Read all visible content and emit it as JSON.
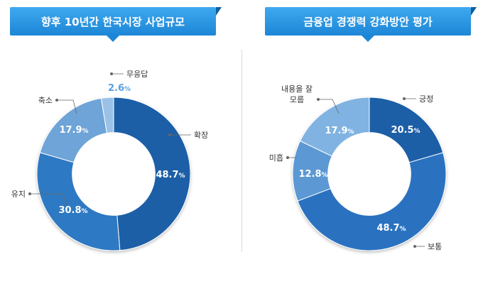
{
  "banners": {
    "left": "향후 10년간 한국시장 사업규모",
    "right": "금융업 경쟁력 강화방안 평가"
  },
  "chart_data": [
    {
      "type": "pie",
      "title": "향후 10년간 한국시장 사업규모",
      "categories": [
        "확장",
        "유지",
        "축소",
        "무응답"
      ],
      "values": [
        48.7,
        30.8,
        17.9,
        2.6
      ],
      "colors": [
        "#1a5ea7",
        "#2f79c3",
        "#6ea4d7",
        "#9bc2e6"
      ],
      "value_labels": [
        "48.7",
        "30.8",
        "17.9",
        "2.6"
      ],
      "value_label_colors": [
        "#ffffff",
        "#ffffff",
        "#ffffff",
        "#5b9fdd"
      ],
      "label_lines": [
        [
          "확장"
        ],
        [
          "유지"
        ],
        [
          "축소"
        ],
        [
          "무응답"
        ]
      ],
      "start_angle_deg": 0,
      "inner_radius_ratio": 0.54
    },
    {
      "type": "pie",
      "title": "금융업 경쟁력 강화방안 평가",
      "categories": [
        "긍정",
        "보통",
        "미흡",
        "내용을 잘 모름"
      ],
      "values": [
        20.5,
        48.7,
        12.8,
        17.9
      ],
      "colors": [
        "#1a5ea7",
        "#2a72c0",
        "#5c98d4",
        "#80b3e1"
      ],
      "value_labels": [
        "20.5",
        "48.7",
        "12.8",
        "17.9"
      ],
      "value_label_colors": [
        "#ffffff",
        "#ffffff",
        "#ffffff",
        "#ffffff"
      ],
      "label_lines": [
        [
          "긍정"
        ],
        [
          "보통"
        ],
        [
          "미흡"
        ],
        [
          "내용을 잘",
          "모름"
        ]
      ],
      "start_angle_deg": 0,
      "inner_radius_ratio": 0.54
    }
  ],
  "percent_sign": "%"
}
